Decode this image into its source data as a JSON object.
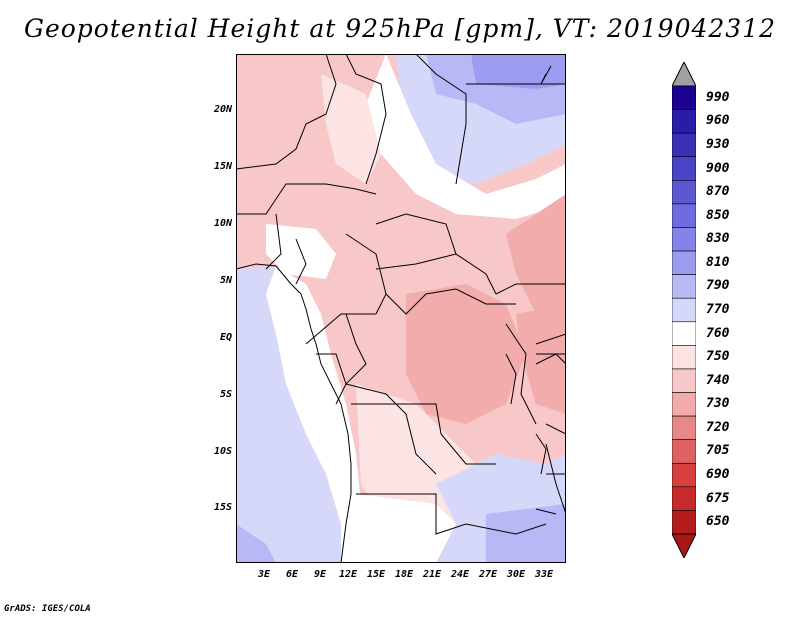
{
  "title": "Geopotential Height at 925hPa [gpm], VT: 2019042312",
  "credit": "GrADS: IGES/COLA",
  "map": {
    "lat_labels": [
      "20N",
      "15N",
      "10N",
      "5N",
      "EQ",
      "5S",
      "10S",
      "15S"
    ],
    "lon_labels": [
      "3E",
      "6E",
      "9E",
      "12E",
      "15E",
      "18E",
      "21E",
      "24E",
      "27E",
      "30E",
      "33E"
    ]
  },
  "colorbar": {
    "levels": [
      "990",
      "960",
      "930",
      "900",
      "870",
      "850",
      "830",
      "810",
      "790",
      "770",
      "760",
      "750",
      "740",
      "730",
      "720",
      "705",
      "690",
      "675",
      "650"
    ],
    "colors": [
      "#1c0090",
      "#2a1ca6",
      "#3a30b8",
      "#4a44c6",
      "#5c58d2",
      "#6e6ce0",
      "#8484e8",
      "#9c9cf0",
      "#b8b8f6",
      "#d6d8fa",
      "#ffffff",
      "#fde4e4",
      "#f8c8c8",
      "#f2acac",
      "#e88888",
      "#e06262",
      "#d84040",
      "#c82a2a",
      "#b41c1c"
    ],
    "top_arrow_color": "#a0a0a0",
    "bottom_arrow_color": "#a81818"
  }
}
